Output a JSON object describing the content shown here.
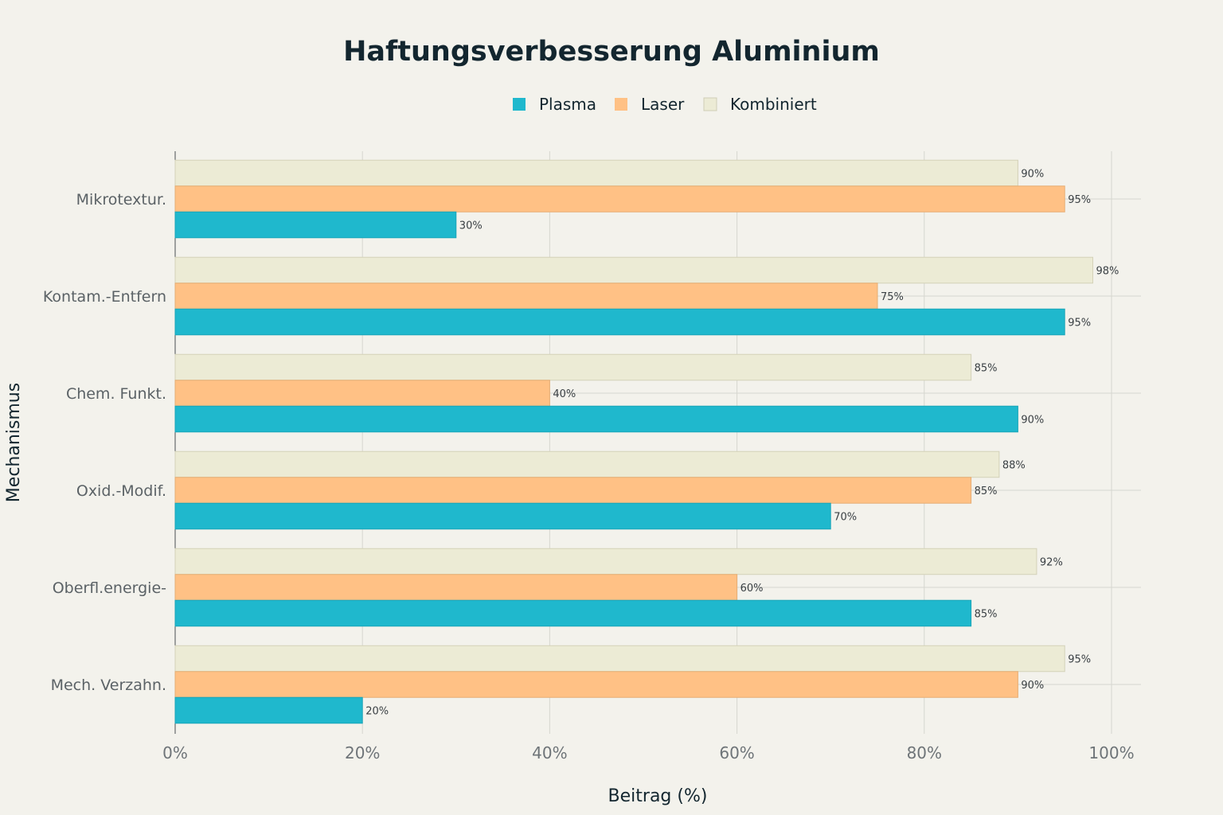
{
  "chart_data": {
    "type": "bar",
    "orientation": "horizontal",
    "title": "Haftungsverbesserung Aluminium",
    "xlabel": "Beitrag (%)",
    "ylabel": "Mechanismus",
    "xlim": [
      0,
      100
    ],
    "x_ticks": [
      "0%",
      "20%",
      "40%",
      "60%",
      "80%",
      "100%"
    ],
    "grid": true,
    "legend_position": "top-center",
    "categories": [
      "Mikrotextur.",
      "Kontam.-Entfern",
      "Chem. Funkt.",
      "Oxid.-Modif.",
      "Oberfl.energie-",
      "Mech. Verzahn."
    ],
    "series": [
      {
        "name": "Plasma",
        "color": "#1fb8cd",
        "values": [
          30,
          95,
          90,
          70,
          85,
          20
        ]
      },
      {
        "name": "Laser",
        "color": "#ffc185",
        "values": [
          95,
          75,
          40,
          85,
          60,
          90
        ]
      },
      {
        "name": "Kombiniert",
        "color": "#ecebd5",
        "values": [
          90,
          98,
          85,
          88,
          92,
          95
        ]
      }
    ],
    "data_label_suffix": "%"
  }
}
